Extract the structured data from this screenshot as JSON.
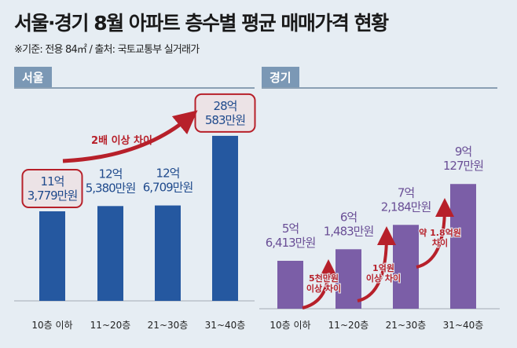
{
  "title": "서울·경기 8월 아파트 층수별 평균 매매가격 현황",
  "subtitle": "※기준: 전용 84㎡ / 출처: 국토교통부 실거래가",
  "colors": {
    "seoul": "#2558a0",
    "gyeonggi": "#7b5ea7",
    "arrow": "#b7202a",
    "bg": "#e6edf3"
  },
  "chart_data": [
    {
      "type": "bar",
      "title": "서울",
      "unit": "만원",
      "categories": [
        "10층 이하",
        "11~20층",
        "21~30층",
        "31~40층"
      ],
      "values": [
        113779,
        125380,
        126709,
        280583
      ],
      "labels": [
        [
          "11억",
          "3,779만원"
        ],
        [
          "12억",
          "5,380만원"
        ],
        [
          "12억",
          "6,709만원"
        ],
        [
          "28억",
          "583만원"
        ]
      ],
      "annotations": [
        "2배 이상 차이"
      ],
      "highlighted": [
        0,
        3
      ]
    },
    {
      "type": "bar",
      "title": "경기",
      "unit": "만원",
      "categories": [
        "10층 이하",
        "11~20층",
        "21~30층",
        "31~40층"
      ],
      "values": [
        56413,
        61483,
        72184,
        90127
      ],
      "labels": [
        [
          "5억",
          "6,413만원"
        ],
        [
          "6억",
          "1,483만원"
        ],
        [
          "7억",
          "2,184만원"
        ],
        [
          "9억",
          "127만원"
        ]
      ],
      "annotations": [
        [
          "5천만원",
          "이상 차이"
        ],
        [
          "1억원",
          "이상 차이"
        ],
        [
          "약 1.8억원",
          "차이"
        ]
      ]
    }
  ]
}
